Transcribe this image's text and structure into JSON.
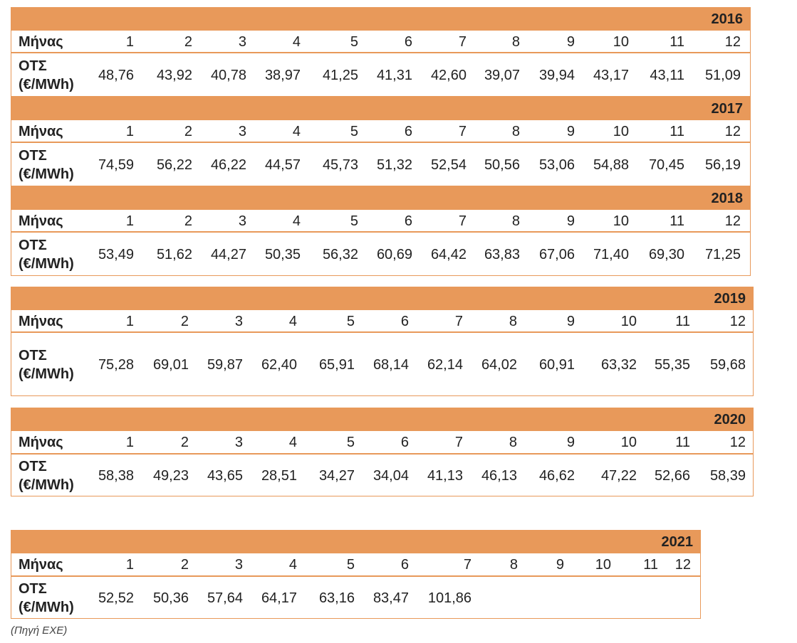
{
  "tables": [
    {
      "year": "2016",
      "header_label": "Μήνας",
      "months": [
        1,
        2,
        3,
        4,
        5,
        6,
        7,
        8,
        9,
        10,
        11,
        12
      ],
      "row_label": [
        "ΟΤΣ",
        "(€/MWh)"
      ],
      "values": [
        "48,76",
        "43,92",
        "40,78",
        "38,97",
        "41,25",
        "41,31",
        "42,60",
        "39,07",
        "39,94",
        "43,17",
        "43,11",
        "51,09"
      ]
    },
    {
      "year": "2017",
      "header_label": "Μήνας",
      "months": [
        1,
        2,
        3,
        4,
        5,
        6,
        7,
        8,
        9,
        10,
        11,
        12
      ],
      "row_label": [
        "ΟΤΣ",
        "(€/MWh)"
      ],
      "values": [
        "74,59",
        "56,22",
        "46,22",
        "44,57",
        "45,73",
        "51,32",
        "52,54",
        "50,56",
        "53,06",
        "54,88",
        "70,45",
        "56,19"
      ]
    },
    {
      "year": "2018",
      "header_label": "Μήνας",
      "months": [
        1,
        2,
        3,
        4,
        5,
        6,
        7,
        8,
        9,
        10,
        11,
        12
      ],
      "row_label": [
        "ΟΤΣ",
        "(€/MWh)"
      ],
      "values": [
        "53,49",
        "51,62",
        "44,27",
        "50,35",
        "56,32",
        "60,69",
        "64,42",
        "63,83",
        "67,06",
        "71,40",
        "69,30",
        "71,25"
      ]
    },
    {
      "year": "2019",
      "header_label": "Μήνας",
      "months": [
        1,
        2,
        3,
        4,
        5,
        6,
        7,
        8,
        9,
        10,
        11,
        12
      ],
      "row_label": [
        "ΟΤΣ",
        "(€/MWh)"
      ],
      "values": [
        "75,28",
        "69,01",
        "59,87",
        "62,40",
        "65,91",
        "68,14",
        "62,14",
        "64,02",
        "60,91",
        "63,32",
        "55,35",
        "59,68"
      ]
    },
    {
      "year": "2020",
      "header_label": "Μήνας",
      "months": [
        1,
        2,
        3,
        4,
        5,
        6,
        7,
        8,
        9,
        10,
        11,
        12
      ],
      "row_label": [
        "ΟΤΣ",
        "(€/MWh)"
      ],
      "values": [
        "58,38",
        "49,23",
        "43,65",
        "28,51",
        "34,27",
        "34,04",
        "41,13",
        "46,13",
        "46,62",
        "47,22",
        "52,66",
        "58,39"
      ]
    },
    {
      "year": "2021",
      "header_label": "Μήνας",
      "months": [
        1,
        2,
        3,
        4,
        5,
        6,
        7,
        8,
        9,
        10,
        11,
        12
      ],
      "row_label": [
        "ΟΤΣ",
        "(€/MWh)"
      ],
      "values": [
        "52,52",
        "50,36",
        "57,64",
        "64,17",
        "63,16",
        "83,47",
        "101,86"
      ]
    }
  ],
  "source": "(Πηγή ΕΧΕ)"
}
